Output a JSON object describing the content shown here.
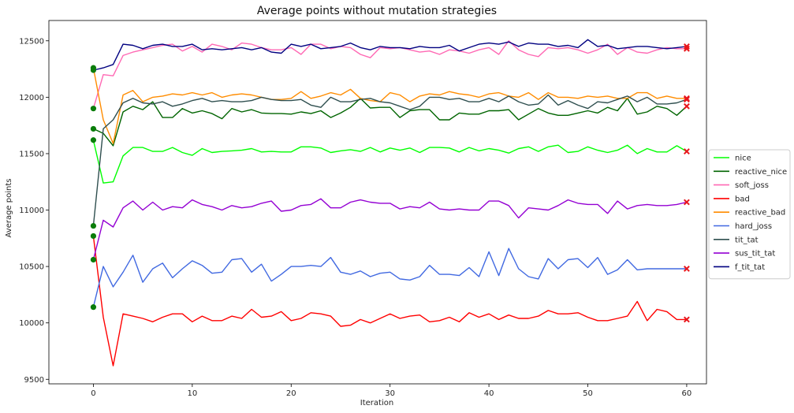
{
  "chart_data": {
    "type": "line",
    "title": "Average points without mutation strategies",
    "xlabel": "Iteration",
    "ylabel": "Average points",
    "xlim": [
      -4.5,
      62
    ],
    "ylim": [
      9460,
      12680
    ],
    "xticks": [
      0,
      10,
      20,
      30,
      40,
      50,
      60
    ],
    "yticks": [
      9500,
      10000,
      10500,
      11000,
      11500,
      12000,
      12500
    ],
    "grid": false,
    "legend_position": "right-center",
    "start_marker": "filled circle (green)",
    "end_marker": "x (red)",
    "series": [
      {
        "name": "nice",
        "color": "#00ff00",
        "values": [
          11620,
          11240,
          11250,
          11480,
          11555,
          11555,
          11520,
          11520,
          11555,
          11510,
          11485,
          11545,
          11510,
          11520,
          11525,
          11530,
          11545,
          11515,
          11520,
          11515,
          11515,
          11560,
          11560,
          11550,
          11510,
          11525,
          11535,
          11520,
          11555,
          11515,
          11550,
          11530,
          11550,
          11510,
          11555,
          11555,
          11550,
          11515,
          11555,
          11525,
          11545,
          11530,
          11505,
          11545,
          11560,
          11520,
          11560,
          11575,
          11510,
          11520,
          11560,
          11530,
          11510,
          11530,
          11575,
          11500,
          11545,
          11515,
          11515,
          11570,
          11520
        ]
      },
      {
        "name": "reactive_nice",
        "color": "#006400",
        "values": [
          11720,
          11680,
          11570,
          11870,
          11920,
          11890,
          11960,
          11820,
          11820,
          11900,
          11860,
          11880,
          11855,
          11810,
          11900,
          11870,
          11890,
          11860,
          11855,
          11855,
          11850,
          11870,
          11855,
          11880,
          11820,
          11860,
          11910,
          11990,
          11905,
          11910,
          11910,
          11820,
          11880,
          11890,
          11890,
          11800,
          11800,
          11860,
          11850,
          11850,
          11880,
          11880,
          11890,
          11800,
          11850,
          11900,
          11860,
          11840,
          11840,
          11860,
          11880,
          11860,
          11910,
          11880,
          11990,
          11850,
          11870,
          11920,
          11900,
          11840,
          11920
        ]
      },
      {
        "name": "soft_joss",
        "color": "#ff69b4",
        "values": [
          11900,
          12200,
          12190,
          12370,
          12400,
          12420,
          12440,
          12460,
          12470,
          12410,
          12450,
          12400,
          12470,
          12450,
          12420,
          12480,
          12470,
          12440,
          12420,
          12420,
          12440,
          12380,
          12470,
          12470,
          12430,
          12450,
          12440,
          12380,
          12350,
          12440,
          12430,
          12440,
          12420,
          12400,
          12410,
          12380,
          12420,
          12410,
          12390,
          12420,
          12440,
          12380,
          12500,
          12420,
          12380,
          12360,
          12440,
          12430,
          12440,
          12420,
          12390,
          12420,
          12470,
          12380,
          12440,
          12400,
          12390,
          12420,
          12440,
          12430,
          12430
        ]
      },
      {
        "name": "bad",
        "color": "#ff0000",
        "values": [
          10770,
          10050,
          9620,
          10080,
          10060,
          10040,
          10010,
          10050,
          10080,
          10080,
          10010,
          10060,
          10020,
          10020,
          10060,
          10040,
          10120,
          10050,
          10060,
          10100,
          10020,
          10040,
          10090,
          10080,
          10060,
          9970,
          9980,
          10030,
          10000,
          10040,
          10080,
          10040,
          10060,
          10070,
          10010,
          10020,
          10050,
          10010,
          10090,
          10050,
          10080,
          10030,
          10070,
          10040,
          10040,
          10060,
          10110,
          10080,
          10080,
          10090,
          10050,
          10020,
          10020,
          10040,
          10060,
          10190,
          10020,
          10120,
          10100,
          10030,
          10030
        ]
      },
      {
        "name": "reactive_bad",
        "color": "#ff8c00",
        "values": [
          12260,
          11800,
          11590,
          12020,
          12060,
          11960,
          12000,
          12010,
          12030,
          12020,
          12040,
          12020,
          12040,
          12000,
          12020,
          12030,
          12020,
          12000,
          11980,
          11980,
          11990,
          12050,
          11990,
          12010,
          12040,
          12020,
          12070,
          11990,
          11970,
          11960,
          12040,
          12020,
          11960,
          12010,
          12030,
          12020,
          12050,
          12030,
          12020,
          12000,
          12030,
          12040,
          12010,
          12000,
          12040,
          11980,
          12040,
          12000,
          12000,
          11990,
          12010,
          12000,
          12010,
          11990,
          11990,
          12040,
          12040,
          11990,
          12010,
          11990,
          11990
        ]
      },
      {
        "name": "hard_joss",
        "color": "#4169e1",
        "values": [
          10140,
          10500,
          10320,
          10450,
          10600,
          10360,
          10480,
          10530,
          10400,
          10480,
          10550,
          10510,
          10440,
          10450,
          10560,
          10570,
          10450,
          10520,
          10370,
          10430,
          10500,
          10500,
          10510,
          10500,
          10580,
          10450,
          10430,
          10460,
          10410,
          10440,
          10450,
          10390,
          10380,
          10410,
          10510,
          10430,
          10430,
          10420,
          10490,
          10410,
          10630,
          10420,
          10660,
          10480,
          10410,
          10390,
          10570,
          10480,
          10560,
          10570,
          10490,
          10580,
          10430,
          10470,
          10560,
          10470,
          10480,
          10480,
          10480,
          10480,
          10480
        ]
      },
      {
        "name": "tit_tat",
        "color": "#2f4f4f",
        "values": [
          10860,
          11720,
          11800,
          11950,
          11990,
          11950,
          11940,
          11960,
          11920,
          11940,
          11970,
          11990,
          11960,
          11970,
          11960,
          11960,
          11970,
          12000,
          11980,
          11970,
          11970,
          11980,
          11930,
          11910,
          12000,
          11960,
          11960,
          11980,
          11990,
          11960,
          11950,
          11920,
          11890,
          11920,
          12000,
          12000,
          11980,
          11990,
          11960,
          11960,
          11990,
          11960,
          12010,
          11960,
          11930,
          11940,
          12020,
          11930,
          11970,
          11930,
          11900,
          11960,
          11950,
          11980,
          12010,
          11960,
          12000,
          11940,
          11940,
          11950,
          11980
        ]
      },
      {
        "name": "sus_tit_tat",
        "color": "#9400d3",
        "values": [
          10560,
          10910,
          10850,
          11020,
          11080,
          11000,
          11070,
          11000,
          11030,
          11020,
          11090,
          11050,
          11030,
          11000,
          11040,
          11020,
          11030,
          11060,
          11080,
          10990,
          11000,
          11040,
          11050,
          11100,
          11020,
          11020,
          11070,
          11090,
          11070,
          11060,
          11060,
          11010,
          11030,
          11020,
          11070,
          11010,
          11000,
          11010,
          11000,
          11000,
          11080,
          11080,
          11040,
          10930,
          11020,
          11010,
          11000,
          11040,
          11090,
          11060,
          11050,
          11050,
          10970,
          11080,
          11010,
          11040,
          11050,
          11040,
          11040,
          11050,
          11070
        ]
      },
      {
        "name": "f_tit_tat",
        "color": "#000080",
        "values": [
          12240,
          12260,
          12290,
          12470,
          12460,
          12430,
          12460,
          12470,
          12450,
          12450,
          12470,
          12420,
          12430,
          12420,
          12430,
          12440,
          12420,
          12440,
          12400,
          12390,
          12470,
          12450,
          12470,
          12430,
          12440,
          12450,
          12480,
          12440,
          12420,
          12450,
          12440,
          12440,
          12430,
          12450,
          12440,
          12440,
          12460,
          12410,
          12440,
          12470,
          12480,
          12470,
          12490,
          12450,
          12480,
          12470,
          12470,
          12450,
          12460,
          12440,
          12510,
          12450,
          12460,
          12430,
          12440,
          12450,
          12450,
          12440,
          12430,
          12440,
          12450
        ]
      }
    ]
  }
}
